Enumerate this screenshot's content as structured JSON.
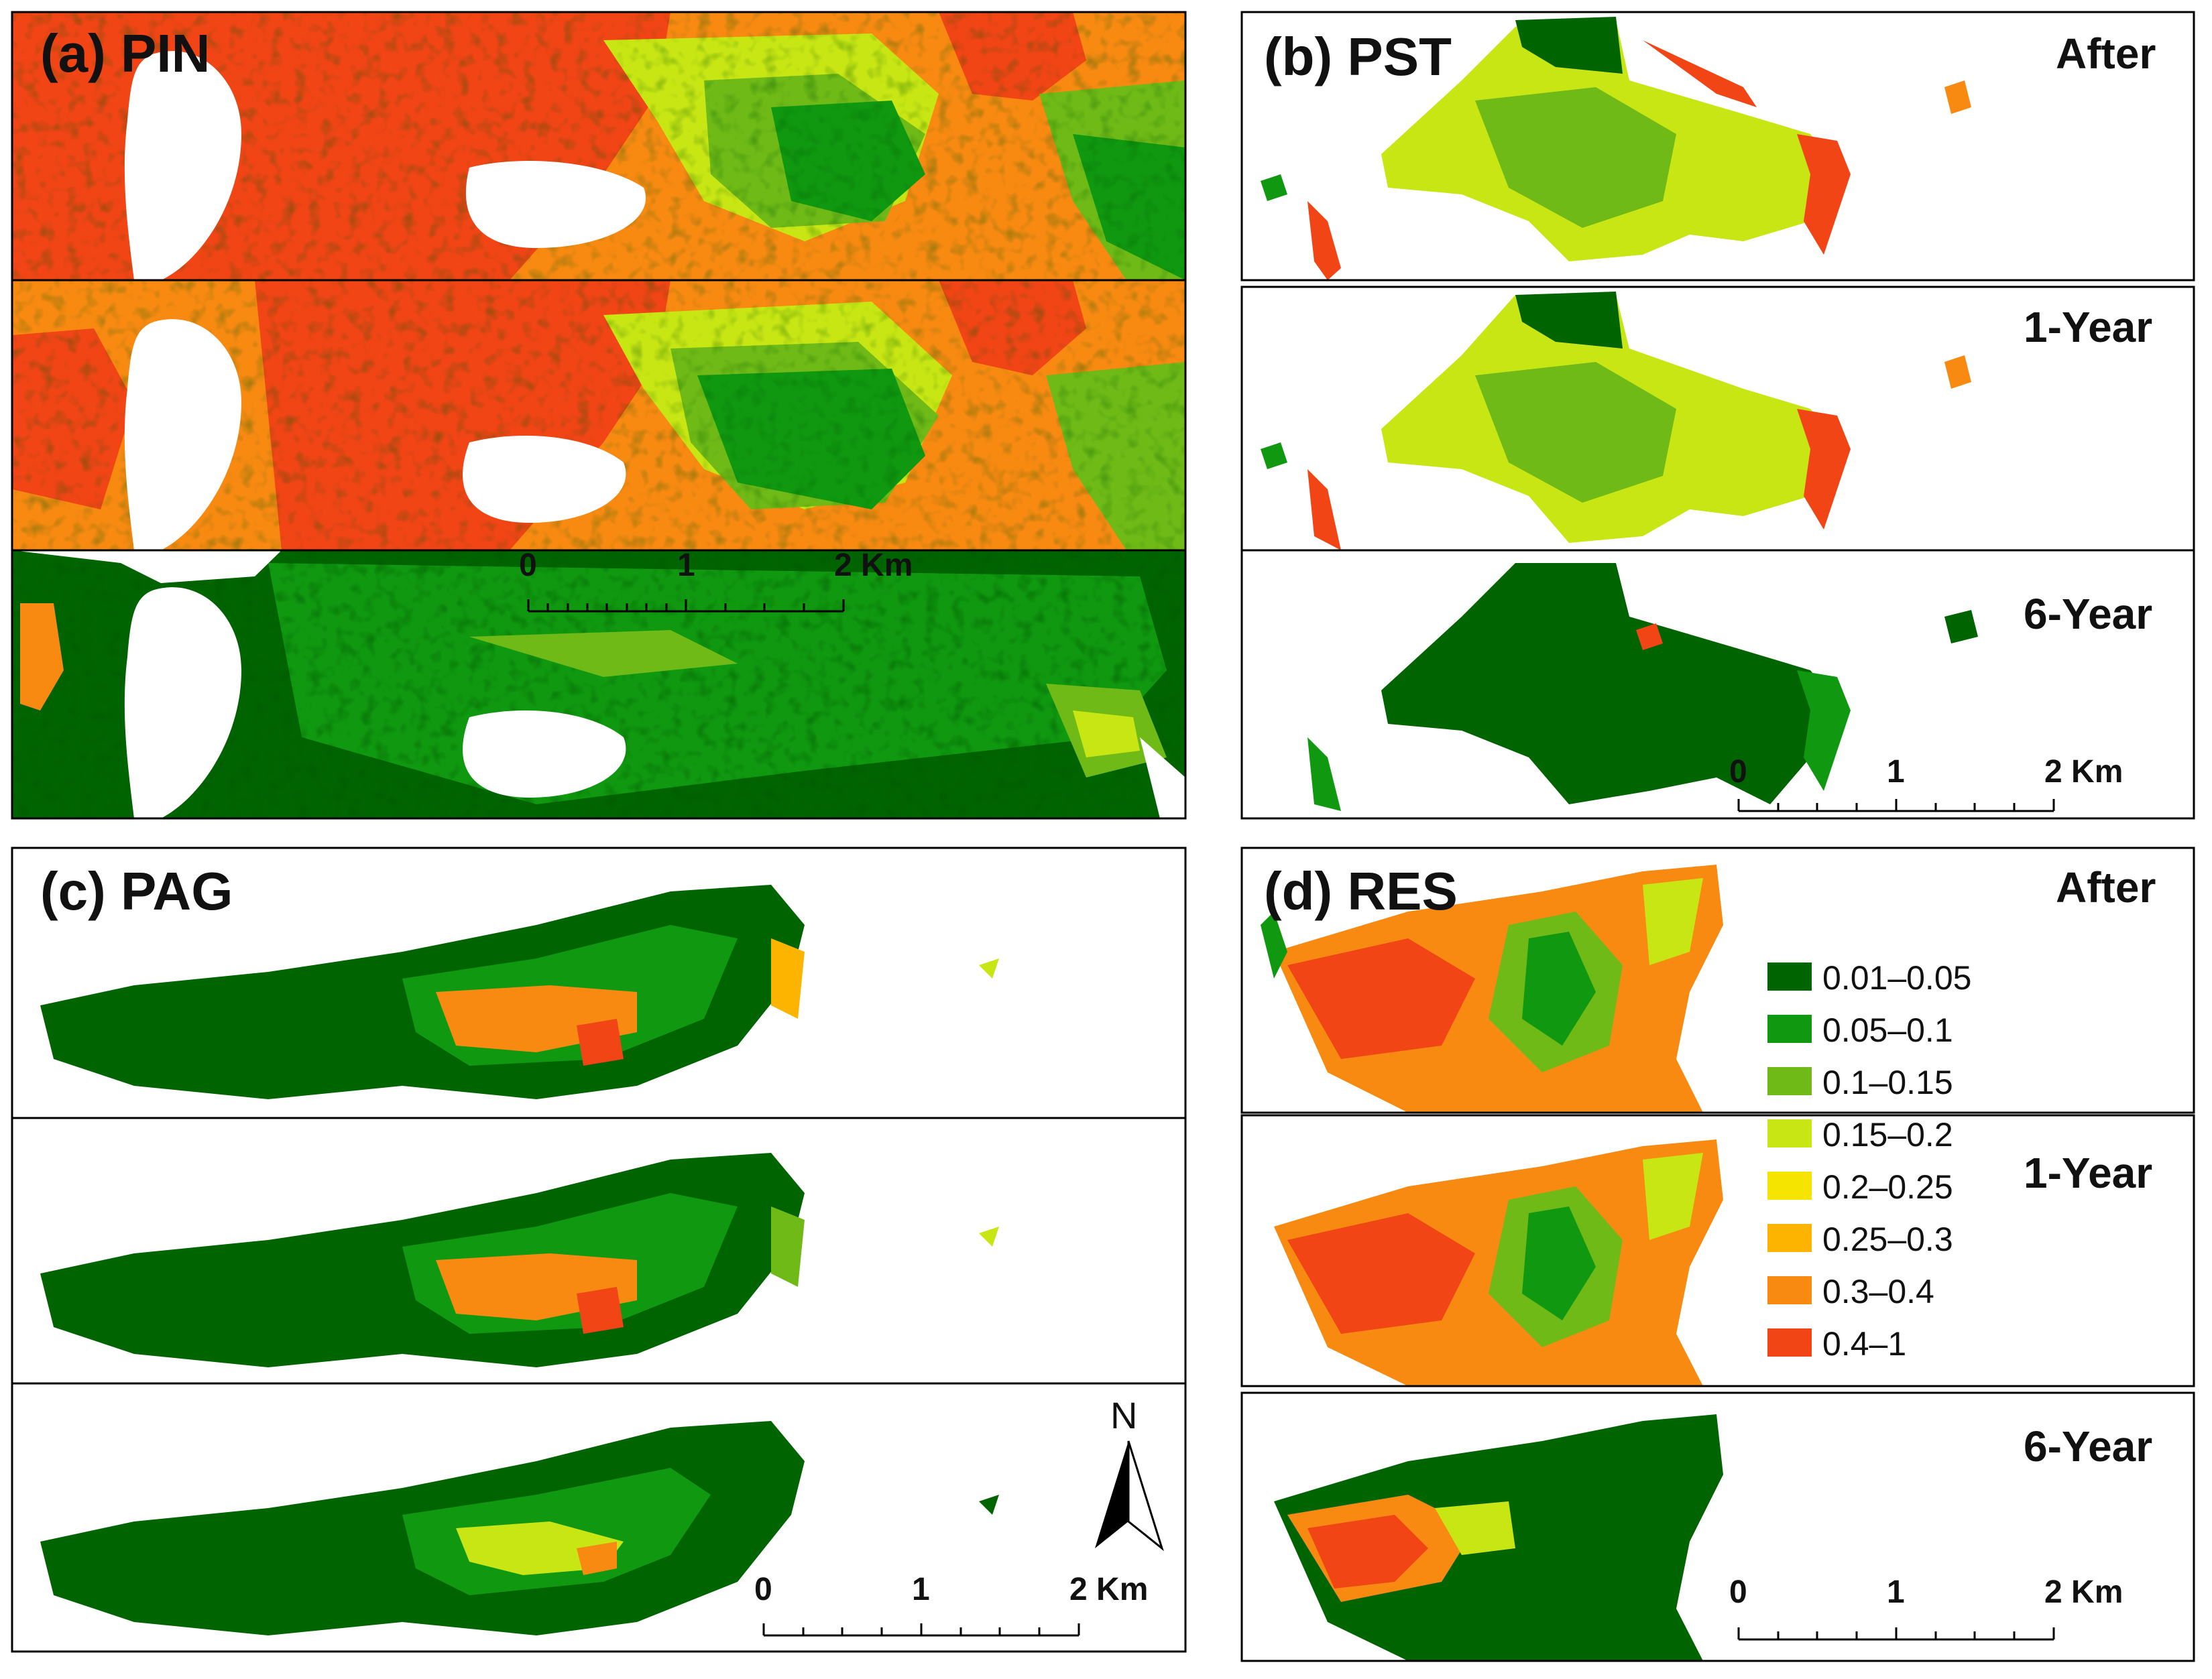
{
  "palette": {
    "c1": "#006400",
    "c2": "#109810",
    "c3": "#6fba17",
    "c4": "#c8e614",
    "c5": "#f5e400",
    "c6": "#fdb400",
    "c7": "#f88a12",
    "c8": "#f24516"
  },
  "panels": {
    "a": {
      "label": "(a) PIN"
    },
    "b": {
      "label": "(b) PST",
      "t1": "After",
      "t2": "1-Year",
      "t3": "6-Year"
    },
    "c": {
      "label": "(c) PAG"
    },
    "d": {
      "label": "(d) RES",
      "t1": "After",
      "t2": "1-Year",
      "t3": "6-Year"
    }
  },
  "scale_bar": {
    "zero": "0",
    "one": "1",
    "two": "2 Km"
  },
  "north_arrow": {
    "letter": "N"
  },
  "legend": {
    "items": [
      {
        "label": "0.01–0.05",
        "color": "#006400"
      },
      {
        "label": "0.05–0.1",
        "color": "#109810"
      },
      {
        "label": "0.1–0.15",
        "color": "#6fba17"
      },
      {
        "label": "0.15–0.2",
        "color": "#c8e614"
      },
      {
        "label": "0.2–0.25",
        "color": "#f5e400"
      },
      {
        "label": "0.25–0.3",
        "color": "#fdb400"
      },
      {
        "label": "0.3–0.4",
        "color": "#f88a12"
      },
      {
        "label": "0.4–1",
        "color": "#f24516"
      }
    ]
  }
}
